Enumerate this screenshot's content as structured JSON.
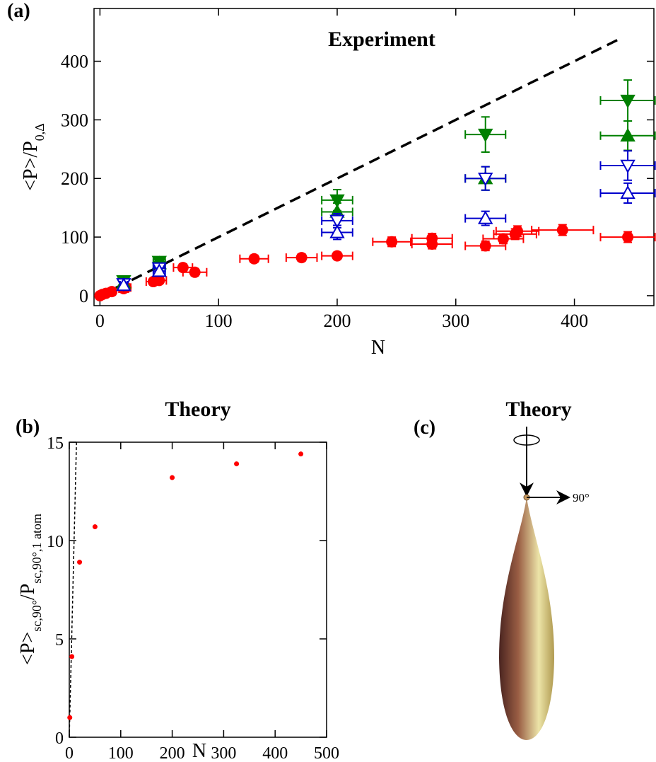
{
  "chart_data": [
    {
      "type": "scatter",
      "label": "(a)",
      "title": "Experiment",
      "xlabel": "N",
      "ylabel": [
        "<P>/P",
        "0,Δ"
      ],
      "xlim": [
        -5,
        467
      ],
      "ylim": [
        -17,
        490
      ],
      "xticks": [
        0,
        100,
        200,
        300,
        400
      ],
      "yticks": [
        0,
        100,
        200,
        300,
        400
      ],
      "series": [
        {
          "marker": "dashed-line",
          "color": "#000000",
          "x": [
            0,
            440
          ],
          "values": [
            0,
            440
          ]
        },
        {
          "marker": "circle",
          "color": "#ff0000",
          "x": [
            0,
            2,
            5,
            10,
            20,
            22,
            45,
            50,
            70,
            80,
            130,
            170,
            200,
            246,
            280,
            280,
            325,
            340,
            350,
            352,
            390,
            445
          ],
          "values": [
            0,
            2,
            4,
            7,
            12,
            14,
            24,
            26,
            48,
            40,
            63,
            65,
            68,
            92,
            88,
            98,
            85,
            97,
            105,
            110,
            112,
            100
          ],
          "xerr": [
            1,
            1,
            2,
            3,
            4,
            4,
            6,
            6,
            8,
            10,
            12,
            13,
            13,
            16,
            17,
            17,
            17,
            17,
            18,
            18,
            26,
            23
          ],
          "yerr": [
            2,
            2,
            3,
            3,
            4,
            4,
            5,
            5,
            6,
            6,
            6,
            6,
            6,
            8,
            8,
            8,
            8,
            8,
            9,
            9,
            9,
            9
          ]
        },
        {
          "marker": "tri-down",
          "color": "#008000",
          "x": [
            20,
            50,
            200,
            325,
            445
          ],
          "values": [
            25,
            58,
            163,
            275,
            333
          ],
          "xerr": [
            3,
            5,
            13,
            17,
            23
          ],
          "yerr": [
            3,
            5,
            18,
            30,
            35
          ]
        },
        {
          "marker": "tri-up",
          "color": "#008000",
          "x": [
            20,
            50,
            200,
            325,
            445
          ],
          "values": [
            22,
            55,
            143,
            200,
            273
          ],
          "xerr": [
            3,
            5,
            13,
            17,
            23
          ],
          "yerr": [
            3,
            5,
            15,
            20,
            25
          ]
        },
        {
          "marker": "tri-down-open",
          "color": "#0000cc",
          "x": [
            20,
            50,
            200,
            325,
            445
          ],
          "values": [
            20,
            47,
            128,
            200,
            222
          ],
          "xerr": [
            3,
            5,
            13,
            17,
            23
          ],
          "yerr": [
            3,
            5,
            12,
            20,
            25
          ]
        },
        {
          "marker": "tri-up-open",
          "color": "#0000cc",
          "x": [
            20,
            50,
            200,
            325,
            445
          ],
          "values": [
            18,
            42,
            108,
            132,
            175
          ],
          "xerr": [
            3,
            5,
            13,
            17,
            23
          ],
          "yerr": [
            3,
            5,
            12,
            12,
            17
          ]
        }
      ]
    },
    {
      "type": "scatter",
      "label": "(b)",
      "title": "Theory",
      "xlabel": "N",
      "ylabel": [
        "<P>",
        "sc,90°",
        "/P",
        "sc,90°,1 atom"
      ],
      "xlim": [
        0,
        500
      ],
      "ylim": [
        0,
        15
      ],
      "xticks": [
        0,
        100,
        200,
        300,
        400,
        500
      ],
      "yticks": [
        0,
        5,
        10,
        15
      ],
      "series": [
        {
          "marker": "dashed-line",
          "color": "#000000",
          "x": [
            0,
            14
          ],
          "values": [
            0,
            15
          ]
        },
        {
          "marker": "dot",
          "color": "#ff0000",
          "x": [
            1,
            5,
            20,
            50,
            200,
            325,
            450
          ],
          "values": [
            1,
            4.1,
            8.9,
            10.7,
            13.2,
            13.9,
            14.4
          ]
        }
      ]
    }
  ],
  "panel_c": {
    "label": "(c)",
    "title": "Theory",
    "annotation": "90°"
  }
}
